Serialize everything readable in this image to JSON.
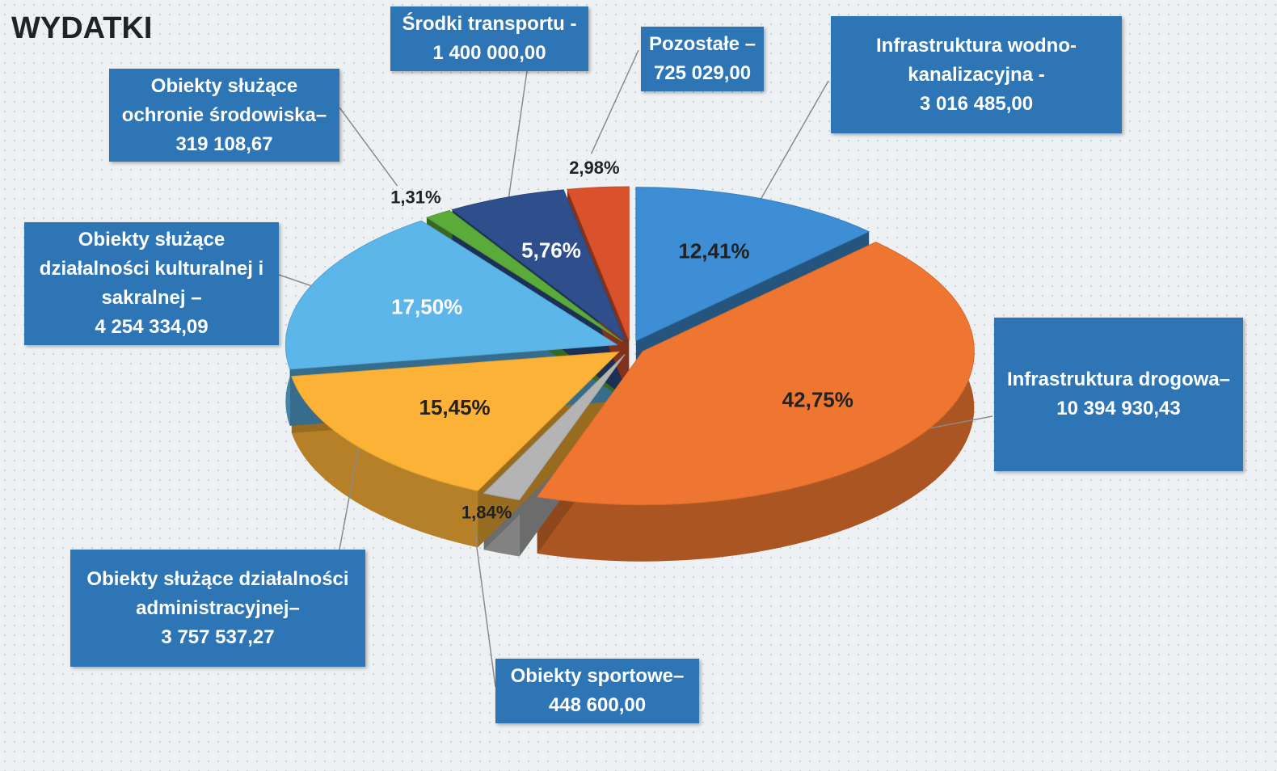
{
  "chart_data": {
    "type": "pie",
    "title": "WYDATKI",
    "categories": [
      "Infrastruktura wodno-kanalizacyjna -",
      "Infrastruktura drogowa–",
      "Obiekty sportowe–",
      "Obiekty służące działalności administracyjnej–",
      "Obiekty służące działalności kulturalnej i sakralnej –",
      "Obiekty służące ochronie środowiska–",
      "Środki transportu -",
      "Pozostałe –"
    ],
    "values": [
      12.41,
      42.75,
      1.84,
      15.45,
      17.5,
      1.31,
      5.76,
      2.98
    ],
    "value_labels": [
      "12,41%",
      "42,75%",
      "1,84%",
      "15,45%",
      "17,50%",
      "1,31%",
      "5,76%",
      "2,98%"
    ],
    "amounts": [
      {
        "value": 3016485.0,
        "label": "3 016 485,00"
      },
      {
        "value": 10394930.43,
        "label": "10 394 930,43"
      },
      {
        "value": 448600.0,
        "label": "448 600,00"
      },
      {
        "value": 3757537.27,
        "label": "3 757 537,27"
      },
      {
        "value": 4254334.09,
        "label": "4 254 334,09"
      },
      {
        "value": 319108.67,
        "label": "319 108,67"
      },
      {
        "value": 1400000.0,
        "label": "1 400 000,00"
      },
      {
        "value": 725029.0,
        "label": "725 029,00"
      }
    ],
    "colors": [
      "#3d8ed4",
      "#ee7630",
      "#b4b4b4",
      "#fbb236",
      "#5cb6ea",
      "#5aab3a",
      "#2f4f8c",
      "#d9522c"
    ]
  }
}
